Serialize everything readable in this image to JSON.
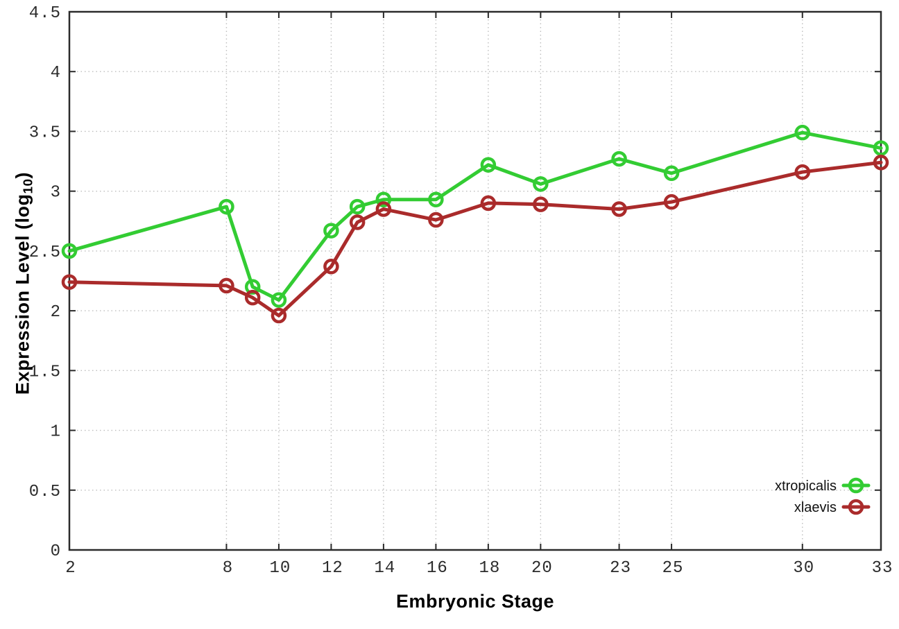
{
  "chart_data": {
    "type": "line",
    "title": "",
    "xlabel": "Embryonic Stage",
    "ylabel": "Expression Level (log10)",
    "x": [
      2,
      8,
      9,
      10,
      12,
      13,
      14,
      16,
      18,
      20,
      23,
      25,
      30,
      33
    ],
    "x_ticks": [
      2,
      8,
      10,
      12,
      14,
      16,
      18,
      20,
      23,
      25,
      30,
      33
    ],
    "y_ticks": [
      0,
      0.5,
      1,
      1.5,
      2,
      2.5,
      3,
      3.5,
      4,
      4.5
    ],
    "xlim": [
      2,
      33
    ],
    "ylim": [
      0,
      4.5
    ],
    "grid": true,
    "legend_position": "bottom-right",
    "series": [
      {
        "name": "xtropicalis",
        "color": "#33cc33",
        "values": [
          2.5,
          2.87,
          2.2,
          2.09,
          2.67,
          2.87,
          2.93,
          2.93,
          3.22,
          3.06,
          3.27,
          3.15,
          3.49,
          3.36
        ]
      },
      {
        "name": "xlaevis",
        "color": "#aa2b2b",
        "values": [
          2.24,
          2.21,
          2.11,
          1.96,
          2.37,
          2.74,
          2.85,
          2.76,
          2.9,
          2.89,
          2.85,
          2.91,
          3.16,
          3.24
        ]
      }
    ]
  },
  "axes": {
    "xlabel": "Embryonic Stage",
    "ylabel_prefix": "Expression Level (log",
    "ylabel_sub": "10",
    "ylabel_suffix": ")"
  },
  "style_colors": {
    "border": "#2b2b2b",
    "grid": "#bdbdbd",
    "tick_label": "#2b2b2b"
  }
}
